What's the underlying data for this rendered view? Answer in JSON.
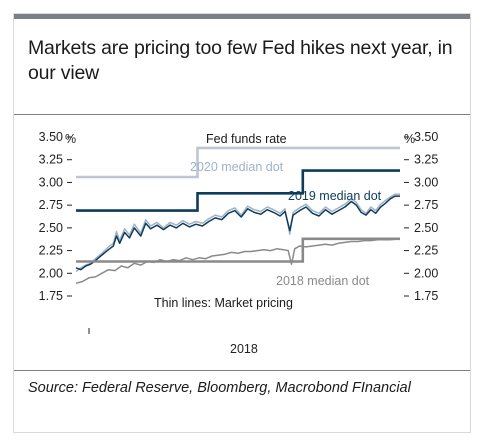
{
  "title": "Markets are pricing too few Fed hikes next year, in our view",
  "source": "Source: Federal Reserve, Bloomberg, Macrobond FInancial",
  "chart_data": {
    "type": "line",
    "ylim": [
      1.75,
      3.5
    ],
    "yticks": [
      "1.75",
      "2.00",
      "2.25",
      "2.50",
      "2.75",
      "3.00",
      "3.25",
      "3.50"
    ],
    "yunit_left": "%",
    "yunit_right": "%",
    "xlabel": "2018",
    "xlim": [
      0,
      100
    ],
    "grid": false,
    "colors": {
      "fed_funds": "#bcc6d4",
      "median_2020": "#9fb2c8",
      "median_2019": "#0f3c5a",
      "median_2018": "#8a8a8a"
    },
    "annotations": {
      "fed_funds": "Fed funds rate",
      "median_2020": "2020 median dot",
      "median_2019": "2019 median dot",
      "median_2018": "2018 median dot",
      "market": "Thin lines: Market pricing"
    },
    "series": [
      {
        "key": "fed_funds",
        "style": "step",
        "points": [
          [
            0,
            3.06
          ],
          [
            37.5,
            3.06
          ],
          [
            37.5,
            3.38
          ],
          [
            100,
            3.38
          ]
        ]
      },
      {
        "key": "median_2019",
        "style": "step",
        "points": [
          [
            0,
            2.69
          ],
          [
            37.5,
            2.69
          ],
          [
            37.5,
            2.88
          ],
          [
            70,
            2.88
          ],
          [
            70,
            3.13
          ],
          [
            100,
            3.13
          ]
        ]
      },
      {
        "key": "median_2018",
        "style": "step",
        "points": [
          [
            0,
            2.13
          ],
          [
            70,
            2.13
          ],
          [
            70,
            2.38
          ],
          [
            100,
            2.38
          ]
        ]
      },
      {
        "key": "median_2020",
        "style": "market",
        "points": [
          [
            0,
            2.02
          ],
          [
            1.5,
            2.06
          ],
          [
            3,
            2.09
          ],
          [
            4.5,
            2.11
          ],
          [
            6,
            2.16
          ],
          [
            8,
            2.22
          ],
          [
            10,
            2.29
          ],
          [
            11.5,
            2.33
          ],
          [
            12.5,
            2.46
          ],
          [
            13.5,
            2.36
          ],
          [
            15,
            2.49
          ],
          [
            16.5,
            2.42
          ],
          [
            18,
            2.54
          ],
          [
            20,
            2.44
          ],
          [
            21.5,
            2.59
          ],
          [
            23,
            2.52
          ],
          [
            25,
            2.56
          ],
          [
            27,
            2.5
          ],
          [
            29,
            2.56
          ],
          [
            31,
            2.53
          ],
          [
            33,
            2.58
          ],
          [
            35,
            2.54
          ],
          [
            37,
            2.57
          ],
          [
            39,
            2.55
          ],
          [
            41,
            2.6
          ],
          [
            43,
            2.64
          ],
          [
            45,
            2.62
          ],
          [
            47,
            2.69
          ],
          [
            49,
            2.72
          ],
          [
            51,
            2.64
          ],
          [
            53,
            2.74
          ],
          [
            55,
            2.7
          ],
          [
            57,
            2.68
          ],
          [
            59,
            2.73
          ],
          [
            61,
            2.7
          ],
          [
            63,
            2.66
          ],
          [
            64.5,
            2.71
          ],
          [
            66,
            2.43
          ],
          [
            67,
            2.67
          ],
          [
            69,
            2.72
          ],
          [
            71,
            2.76
          ],
          [
            73,
            2.69
          ],
          [
            75,
            2.66
          ],
          [
            77,
            2.73
          ],
          [
            79,
            2.68
          ],
          [
            81,
            2.72
          ],
          [
            83,
            2.76
          ],
          [
            85,
            2.82
          ],
          [
            86.5,
            2.78
          ],
          [
            88,
            2.7
          ],
          [
            89.5,
            2.66
          ],
          [
            91,
            2.73
          ],
          [
            92.5,
            2.69
          ],
          [
            94,
            2.76
          ],
          [
            95.5,
            2.8
          ],
          [
            97,
            2.84
          ],
          [
            98.5,
            2.87
          ],
          [
            100,
            2.87
          ]
        ]
      },
      {
        "key": "median_2019",
        "style": "market",
        "points": [
          [
            0,
            2.06
          ],
          [
            1.5,
            2.04
          ],
          [
            3,
            2.08
          ],
          [
            4.5,
            2.1
          ],
          [
            6,
            2.14
          ],
          [
            8,
            2.2
          ],
          [
            10,
            2.26
          ],
          [
            11.5,
            2.3
          ],
          [
            12.5,
            2.41
          ],
          [
            13.5,
            2.33
          ],
          [
            15,
            2.45
          ],
          [
            16.5,
            2.39
          ],
          [
            18,
            2.5
          ],
          [
            20,
            2.41
          ],
          [
            21.5,
            2.55
          ],
          [
            23,
            2.49
          ],
          [
            25,
            2.53
          ],
          [
            27,
            2.48
          ],
          [
            29,
            2.53
          ],
          [
            31,
            2.5
          ],
          [
            33,
            2.55
          ],
          [
            35,
            2.51
          ],
          [
            37,
            2.54
          ],
          [
            39,
            2.52
          ],
          [
            41,
            2.57
          ],
          [
            43,
            2.61
          ],
          [
            45,
            2.59
          ],
          [
            47,
            2.66
          ],
          [
            49,
            2.69
          ],
          [
            51,
            2.62
          ],
          [
            53,
            2.71
          ],
          [
            55,
            2.67
          ],
          [
            57,
            2.65
          ],
          [
            59,
            2.7
          ],
          [
            61,
            2.67
          ],
          [
            63,
            2.63
          ],
          [
            64.5,
            2.68
          ],
          [
            66,
            2.47
          ],
          [
            67,
            2.64
          ],
          [
            69,
            2.69
          ],
          [
            71,
            2.73
          ],
          [
            73,
            2.66
          ],
          [
            75,
            2.63
          ],
          [
            77,
            2.7
          ],
          [
            79,
            2.65
          ],
          [
            81,
            2.69
          ],
          [
            83,
            2.73
          ],
          [
            85,
            2.79
          ],
          [
            86.5,
            2.75
          ],
          [
            88,
            2.67
          ],
          [
            89.5,
            2.64
          ],
          [
            91,
            2.7
          ],
          [
            92.5,
            2.66
          ],
          [
            94,
            2.73
          ],
          [
            95.5,
            2.77
          ],
          [
            97,
            2.82
          ],
          [
            98.5,
            2.85
          ],
          [
            100,
            2.85
          ]
        ]
      },
      {
        "key": "median_2018",
        "style": "market",
        "points": [
          [
            0,
            1.89
          ],
          [
            2,
            1.91
          ],
          [
            4,
            1.95
          ],
          [
            6,
            1.96
          ],
          [
            8,
            2.0
          ],
          [
            10,
            2.04
          ],
          [
            12,
            2.03
          ],
          [
            14,
            2.08
          ],
          [
            16,
            2.06
          ],
          [
            18,
            2.11
          ],
          [
            20,
            2.09
          ],
          [
            22,
            2.13
          ],
          [
            24,
            2.12
          ],
          [
            26,
            2.15
          ],
          [
            28,
            2.13
          ],
          [
            30,
            2.15
          ],
          [
            32,
            2.14
          ],
          [
            34,
            2.17
          ],
          [
            36,
            2.15
          ],
          [
            38,
            2.17
          ],
          [
            40,
            2.16
          ],
          [
            42,
            2.19
          ],
          [
            44,
            2.2
          ],
          [
            46,
            2.21
          ],
          [
            48,
            2.23
          ],
          [
            50,
            2.22
          ],
          [
            52,
            2.24
          ],
          [
            54,
            2.24
          ],
          [
            56,
            2.25
          ],
          [
            58,
            2.26
          ],
          [
            60,
            2.25
          ],
          [
            62,
            2.27
          ],
          [
            64,
            2.26
          ],
          [
            65.5,
            2.25
          ],
          [
            66.5,
            2.1
          ],
          [
            67.5,
            2.27
          ],
          [
            69,
            2.3
          ],
          [
            71,
            2.29
          ],
          [
            73,
            2.3
          ],
          [
            75,
            2.31
          ],
          [
            77,
            2.32
          ],
          [
            79,
            2.31
          ],
          [
            81,
            2.33
          ],
          [
            83,
            2.34
          ],
          [
            85,
            2.35
          ],
          [
            87,
            2.35
          ],
          [
            89,
            2.36
          ],
          [
            91,
            2.36
          ],
          [
            93,
            2.37
          ],
          [
            95,
            2.37
          ],
          [
            97,
            2.37
          ],
          [
            100,
            2.38
          ]
        ]
      }
    ]
  }
}
